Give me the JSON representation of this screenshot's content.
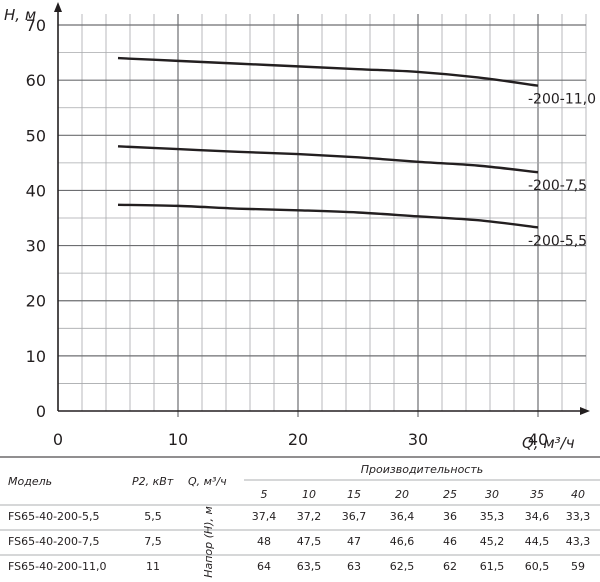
{
  "chart_data": {
    "type": "line",
    "xlabel": "Q, м³/ч",
    "ylabel": "H, м",
    "xlim": [
      0,
      44
    ],
    "ylim": [
      0,
      72
    ],
    "x_ticks": [
      0,
      10,
      20,
      30,
      40
    ],
    "y_ticks": [
      0,
      10,
      20,
      30,
      40,
      50,
      60,
      70
    ],
    "grid": true,
    "series": [
      {
        "name": "-200-11,0",
        "x": [
          5,
          10,
          15,
          20,
          25,
          30,
          35,
          40
        ],
        "values": [
          64,
          63.5,
          63,
          62.5,
          62,
          61.5,
          60.5,
          59
        ]
      },
      {
        "name": "-200-7,5",
        "x": [
          5,
          10,
          15,
          20,
          25,
          30,
          35,
          40
        ],
        "values": [
          48,
          47.5,
          47,
          46.6,
          46,
          45.2,
          44.5,
          43.3
        ]
      },
      {
        "name": "-200-5,5",
        "x": [
          5,
          10,
          15,
          20,
          25,
          30,
          35,
          40
        ],
        "values": [
          37.4,
          37.2,
          36.7,
          36.4,
          36,
          35.3,
          34.6,
          33.3
        ]
      }
    ]
  },
  "table": {
    "header_model": "Модель",
    "header_power": "P2, кВт",
    "header_flow": "Q, м³/ч",
    "header_group": "Производительность",
    "header_head": "Напор (H), м",
    "flow_values": [
      "5",
      "10",
      "15",
      "20",
      "25",
      "30",
      "35",
      "40"
    ],
    "rows": [
      {
        "model": "FS65-40-200-5,5",
        "power": "5,5",
        "values": [
          "37,4",
          "37,2",
          "36,7",
          "36,4",
          "36",
          "35,3",
          "34,6",
          "33,3"
        ]
      },
      {
        "model": "FS65-40-200-7,5",
        "power": "7,5",
        "values": [
          "48",
          "47,5",
          "47",
          "46,6",
          "46",
          "45,2",
          "44,5",
          "43,3"
        ]
      },
      {
        "model": "FS65-40-200-11,0",
        "power": "11",
        "values": [
          "64",
          "63,5",
          "63",
          "62,5",
          "62",
          "61,5",
          "60,5",
          "59"
        ]
      }
    ]
  }
}
